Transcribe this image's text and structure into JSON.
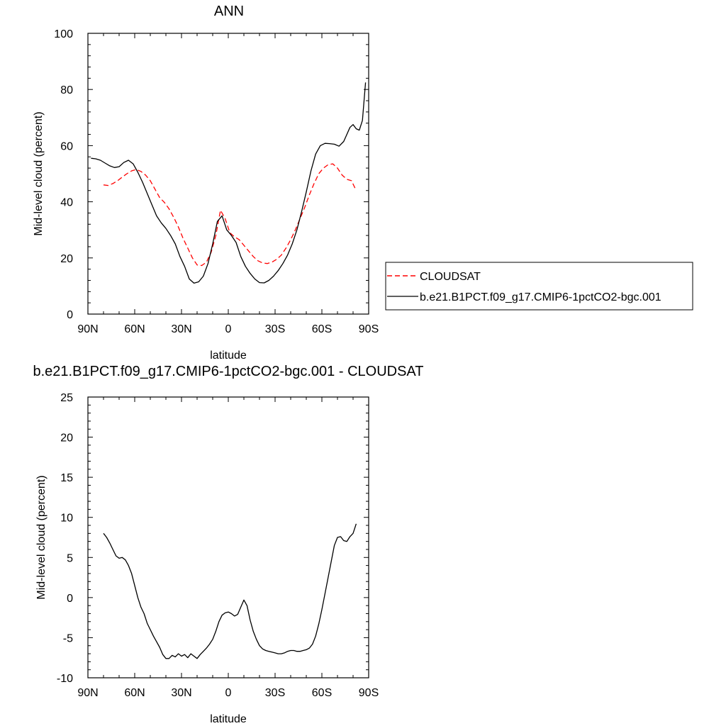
{
  "chart_data": [
    {
      "type": "line",
      "title": "ANN",
      "xlabel": "latitude",
      "ylabel": "Mid-level cloud (percent)",
      "xlim": [
        90,
        -90
      ],
      "ylim": [
        0,
        100
      ],
      "x_tick_values": [
        90,
        60,
        30,
        0,
        -30,
        -60,
        -90
      ],
      "x_tick_labels": [
        "90N",
        "60N",
        "30N",
        "0",
        "30S",
        "60S",
        "90S"
      ],
      "y_ticks": [
        0,
        20,
        40,
        60,
        80,
        100
      ],
      "grid": false,
      "legend": {
        "placement": "right",
        "entries": [
          {
            "label": "CLOUDSAT",
            "color": "#ff0000",
            "dash": "dashed"
          },
          {
            "label": "b.e21.B1PCT.f09_g17.CMIP6-1pctCO2-bgc.001",
            "color": "#000000",
            "dash": "solid"
          }
        ]
      },
      "series": [
        {
          "name": "CLOUDSAT",
          "color": "#ff0000",
          "dash": "dashed",
          "x": [
            80,
            77,
            74,
            71,
            68,
            65,
            62,
            59,
            56,
            53,
            50,
            47,
            44,
            41,
            38,
            35,
            32,
            29,
            26,
            23,
            20,
            17,
            14,
            11,
            8,
            5,
            2,
            -1,
            -4,
            -7,
            -10,
            -13,
            -16,
            -19,
            -22,
            -25,
            -28,
            -31,
            -34,
            -37,
            -40,
            -43,
            -46,
            -49,
            -52,
            -55,
            -58,
            -61,
            -64,
            -67,
            -70,
            -73,
            -76,
            -79,
            -82
          ],
          "y": [
            46,
            45.8,
            46.5,
            47.5,
            48.8,
            50,
            51,
            51.5,
            50.8,
            49.5,
            47.5,
            44.5,
            41.5,
            39.8,
            37.5,
            34.5,
            31,
            27,
            23.5,
            20,
            17.5,
            17.3,
            18.5,
            22,
            28,
            37,
            34,
            29,
            27.5,
            26.5,
            24.5,
            22.5,
            20.5,
            19,
            18.2,
            18,
            18.5,
            19.5,
            21,
            23.5,
            26.5,
            30,
            34,
            38,
            42.5,
            46.5,
            50,
            52,
            53.2,
            53.5,
            52,
            49.5,
            48,
            47.5,
            44
          ]
        },
        {
          "name": "b.e21.B1PCT.f09_g17.CMIP6-1pctCO2-bgc.001",
          "color": "#000000",
          "dash": "solid",
          "x": [
            88,
            85,
            82,
            79,
            76,
            73,
            70,
            67,
            64,
            61,
            58,
            55,
            52,
            49,
            46,
            43,
            40,
            37,
            34,
            31,
            28,
            25,
            22,
            19,
            16,
            13,
            10,
            7,
            4,
            1,
            -2,
            -5,
            -8,
            -11,
            -14,
            -17,
            -20,
            -23,
            -26,
            -29,
            -32,
            -35,
            -38,
            -41,
            -44,
            -47,
            -50,
            -53,
            -56,
            -59,
            -62,
            -65,
            -68,
            -71,
            -74,
            -76,
            -78,
            -80,
            -82,
            -84,
            -86,
            -88
          ],
          "y": [
            55.5,
            55.3,
            54.8,
            53.8,
            52.8,
            52.2,
            52.5,
            54,
            54.8,
            53.5,
            50.5,
            47,
            43,
            39,
            35,
            32.5,
            30.5,
            28,
            25,
            20.5,
            17,
            12.5,
            11,
            11.5,
            13.5,
            18,
            25,
            33,
            35,
            30,
            28,
            25.5,
            20.5,
            17,
            14.5,
            12.5,
            11.2,
            11.1,
            12,
            13.5,
            15.5,
            18,
            21,
            25,
            30,
            36.5,
            43.5,
            51,
            57,
            60,
            60.8,
            60.7,
            60.5,
            59.8,
            61.5,
            64,
            66.5,
            67.5,
            66,
            65.5,
            69,
            82.5
          ]
        }
      ]
    },
    {
      "type": "line",
      "title": "b.e21.B1PCT.f09_g17.CMIP6-1pctCO2-bgc.001 - CLOUDSAT",
      "xlabel": "latitude",
      "ylabel": "Mid-level cloud (percent)",
      "xlim": [
        90,
        -90
      ],
      "ylim": [
        -10,
        25
      ],
      "x_tick_values": [
        90,
        60,
        30,
        0,
        -30,
        -60,
        -90
      ],
      "x_tick_labels": [
        "90N",
        "60N",
        "30N",
        "0",
        "30S",
        "60S",
        "90S"
      ],
      "y_ticks": [
        -10,
        -5,
        0,
        5,
        10,
        15,
        20,
        25
      ],
      "grid": false,
      "series": [
        {
          "color": "#000000",
          "dash": "solid",
          "x": [
            80,
            78,
            76,
            74,
            72,
            70,
            68,
            66,
            64,
            62,
            60,
            58,
            56,
            54,
            52,
            50,
            48,
            46,
            44,
            42,
            40,
            38,
            36,
            34,
            32,
            30,
            28,
            26,
            24,
            22,
            20,
            18,
            16,
            14,
            12,
            10,
            8,
            6,
            4,
            2,
            0,
            -2,
            -4,
            -6,
            -8,
            -10,
            -12,
            -14,
            -16,
            -18,
            -20,
            -22,
            -24,
            -26,
            -28,
            -30,
            -32,
            -34,
            -36,
            -38,
            -40,
            -42,
            -44,
            -46,
            -48,
            -50,
            -52,
            -54,
            -56,
            -58,
            -60,
            -62,
            -64,
            -66,
            -68,
            -70,
            -72,
            -74,
            -76,
            -78,
            -80,
            -82
          ],
          "y": [
            8,
            7.5,
            6.8,
            6,
            5.2,
            4.9,
            5,
            4.7,
            4,
            3,
            1.5,
            0,
            -1.2,
            -2,
            -3.2,
            -4,
            -4.8,
            -5.5,
            -6.2,
            -7.1,
            -7.6,
            -7.6,
            -7.2,
            -7.4,
            -7,
            -7.3,
            -7.1,
            -7.5,
            -7,
            -7.3,
            -7.6,
            -7.1,
            -6.7,
            -6.3,
            -5.8,
            -5.2,
            -4.2,
            -3,
            -2.2,
            -1.9,
            -1.8,
            -2,
            -2.3,
            -2.1,
            -1.2,
            -0.3,
            -1,
            -2.8,
            -4.2,
            -5.2,
            -6,
            -6.4,
            -6.6,
            -6.7,
            -6.8,
            -6.9,
            -7,
            -7,
            -6.9,
            -6.7,
            -6.6,
            -6.6,
            -6.7,
            -6.7,
            -6.6,
            -6.5,
            -6.3,
            -5.8,
            -4.8,
            -3.3,
            -1.5,
            0.5,
            2.5,
            4.5,
            6.5,
            7.5,
            7.6,
            7.1,
            7,
            7.6,
            8,
            9.2
          ]
        }
      ]
    }
  ]
}
